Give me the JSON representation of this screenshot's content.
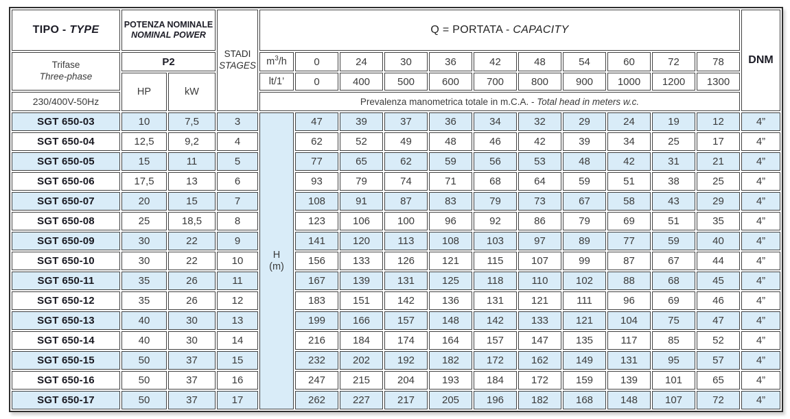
{
  "colors": {
    "row_alt_bg": "#d9ecf8",
    "border": "#404040",
    "text": "#3a3a3a",
    "model_text": "#181820"
  },
  "header": {
    "type": {
      "normal": "TIPO -",
      "italic": "TYPE",
      "phase_normal": "Trifase",
      "phase_italic": "Three-phase",
      "voltage": "230/400V-50Hz"
    },
    "power": {
      "title_normal": "POTENZA NOMINALE",
      "title_italic": "NOMINAL POWER",
      "p2": "P2",
      "hp": "HP",
      "kw": "kW"
    },
    "stages": {
      "normal": "STADI",
      "italic": "STAGES"
    },
    "capacity": {
      "normal": "Q = PORTATA -",
      "italic": "CAPACITY"
    },
    "units": {
      "m3h_base": "m",
      "m3h_sup": "3",
      "m3h_rest": "/h",
      "lt": "lt/1’"
    },
    "m3h_values": [
      "0",
      "24",
      "30",
      "36",
      "42",
      "48",
      "54",
      "60",
      "72",
      "78"
    ],
    "lt_values": [
      "0",
      "400",
      "500",
      "600",
      "700",
      "800",
      "900",
      "1000",
      "1200",
      "1300"
    ],
    "head_note_normal": "Prevalenza manometrica totale in m.C.A. -",
    "head_note_italic": "Total head in meters w.c.",
    "h_label": {
      "line1": "H",
      "line2": "(m)"
    },
    "dnm": "DNM"
  },
  "rows": [
    {
      "model": "SGT 650-03",
      "hp": "10",
      "kw": "7,5",
      "stages": "3",
      "heads": [
        "47",
        "39",
        "37",
        "36",
        "34",
        "32",
        "29",
        "24",
        "19",
        "12"
      ],
      "dnm": "4”"
    },
    {
      "model": "SGT 650-04",
      "hp": "12,5",
      "kw": "9,2",
      "stages": "4",
      "heads": [
        "62",
        "52",
        "49",
        "48",
        "46",
        "42",
        "39",
        "34",
        "25",
        "17"
      ],
      "dnm": "4”"
    },
    {
      "model": "SGT 650-05",
      "hp": "15",
      "kw": "11",
      "stages": "5",
      "heads": [
        "77",
        "65",
        "62",
        "59",
        "56",
        "53",
        "48",
        "42",
        "31",
        "21"
      ],
      "dnm": "4”"
    },
    {
      "model": "SGT 650-06",
      "hp": "17,5",
      "kw": "13",
      "stages": "6",
      "heads": [
        "93",
        "79",
        "74",
        "71",
        "68",
        "64",
        "59",
        "51",
        "38",
        "25"
      ],
      "dnm": "4”"
    },
    {
      "model": "SGT 650-07",
      "hp": "20",
      "kw": "15",
      "stages": "7",
      "heads": [
        "108",
        "91",
        "87",
        "83",
        "79",
        "73",
        "67",
        "58",
        "43",
        "29"
      ],
      "dnm": "4”"
    },
    {
      "model": "SGT 650-08",
      "hp": "25",
      "kw": "18,5",
      "stages": "8",
      "heads": [
        "123",
        "106",
        "100",
        "96",
        "92",
        "86",
        "79",
        "69",
        "51",
        "35"
      ],
      "dnm": "4”"
    },
    {
      "model": "SGT 650-09",
      "hp": "30",
      "kw": "22",
      "stages": "9",
      "heads": [
        "141",
        "120",
        "113",
        "108",
        "103",
        "97",
        "89",
        "77",
        "59",
        "40"
      ],
      "dnm": "4”"
    },
    {
      "model": "SGT 650-10",
      "hp": "30",
      "kw": "22",
      "stages": "10",
      "heads": [
        "156",
        "133",
        "126",
        "121",
        "115",
        "107",
        "99",
        "87",
        "67",
        "44"
      ],
      "dnm": "4”"
    },
    {
      "model": "SGT 650-11",
      "hp": "35",
      "kw": "26",
      "stages": "11",
      "heads": [
        "167",
        "139",
        "131",
        "125",
        "118",
        "110",
        "102",
        "88",
        "68",
        "45"
      ],
      "dnm": "4”"
    },
    {
      "model": "SGT 650-12",
      "hp": "35",
      "kw": "26",
      "stages": "12",
      "heads": [
        "183",
        "151",
        "142",
        "136",
        "131",
        "121",
        "111",
        "96",
        "69",
        "46"
      ],
      "dnm": "4”"
    },
    {
      "model": "SGT 650-13",
      "hp": "40",
      "kw": "30",
      "stages": "13",
      "heads": [
        "199",
        "166",
        "157",
        "148",
        "142",
        "133",
        "121",
        "104",
        "75",
        "47"
      ],
      "dnm": "4”"
    },
    {
      "model": "SGT 650-14",
      "hp": "40",
      "kw": "30",
      "stages": "14",
      "heads": [
        "216",
        "184",
        "174",
        "164",
        "157",
        "147",
        "135",
        "117",
        "85",
        "52"
      ],
      "dnm": "4”"
    },
    {
      "model": "SGT 650-15",
      "hp": "50",
      "kw": "37",
      "stages": "15",
      "heads": [
        "232",
        "202",
        "192",
        "182",
        "172",
        "162",
        "149",
        "131",
        "95",
        "57"
      ],
      "dnm": "4”"
    },
    {
      "model": "SGT 650-16",
      "hp": "50",
      "kw": "37",
      "stages": "16",
      "heads": [
        "247",
        "215",
        "204",
        "193",
        "184",
        "172",
        "159",
        "139",
        "101",
        "65"
      ],
      "dnm": "4”"
    },
    {
      "model": "SGT 650-17",
      "hp": "50",
      "kw": "37",
      "stages": "17",
      "heads": [
        "262",
        "227",
        "217",
        "205",
        "196",
        "182",
        "168",
        "148",
        "107",
        "72"
      ],
      "dnm": "4”"
    }
  ]
}
